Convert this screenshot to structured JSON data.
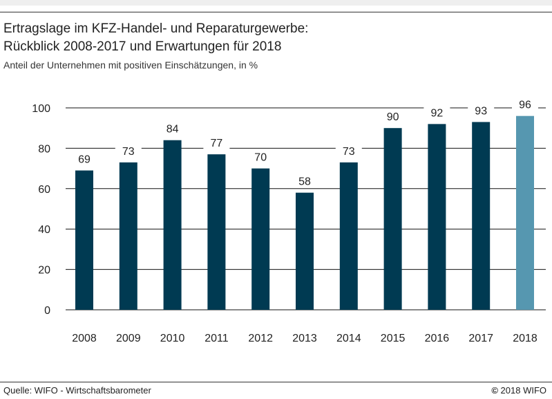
{
  "title_line1": "Ertragslage im KFZ-Handel- und Reparaturgewerbe:",
  "title_line2": "Rückblick 2008-2017 und Erwartungen für 2018",
  "subtitle": "Anteil der Unternehmen mit positiven Einschätzungen, in %",
  "source": "Quelle: WIFO - Wirtschaftsbarometer",
  "copyright_symbol": "©",
  "copyright_text": "2018 WIFO",
  "colors": {
    "bar": "#003a52",
    "bar_highlight": "#5697b0",
    "grid": "#111111"
  },
  "chart_data": {
    "type": "bar",
    "categories": [
      "2008",
      "2009",
      "2010",
      "2011",
      "2012",
      "2013",
      "2014",
      "2015",
      "2016",
      "2017",
      "2018"
    ],
    "values": [
      69,
      73,
      84,
      77,
      70,
      58,
      73,
      90,
      92,
      93,
      96
    ],
    "highlight_index": 10,
    "ylim": [
      0,
      100
    ],
    "yticks": [
      0,
      20,
      40,
      60,
      80,
      100
    ],
    "grid": true,
    "data_labels": true
  }
}
